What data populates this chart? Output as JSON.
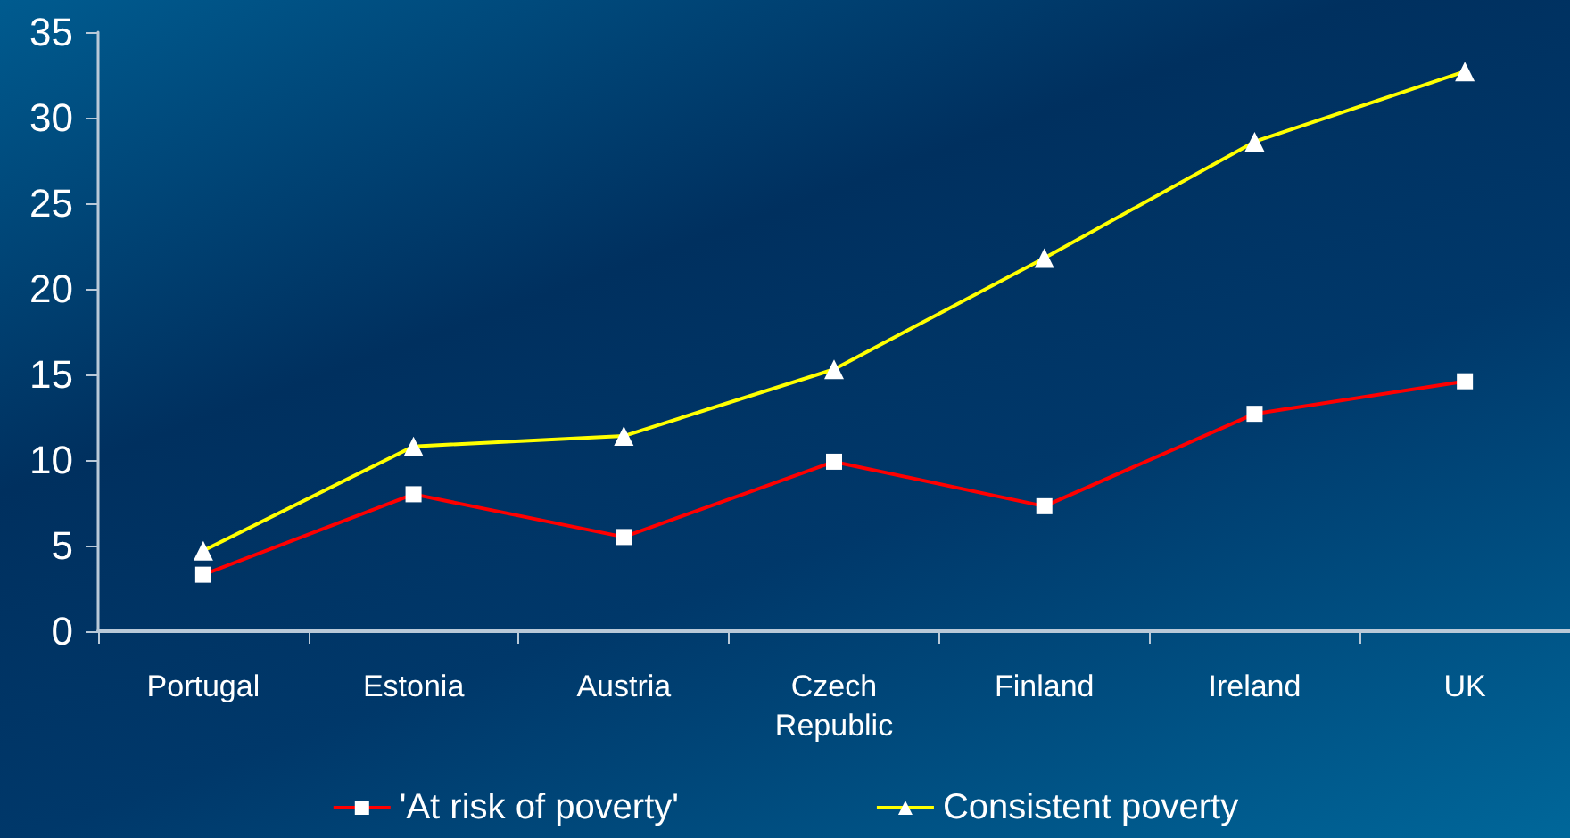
{
  "chart_data": {
    "type": "line",
    "categories": [
      "Portugal",
      "Estonia",
      "Austria",
      "Czech\nRepublic",
      "Finland",
      "Ireland",
      "UK"
    ],
    "series": [
      {
        "name": "'At risk of poverty'",
        "color": "#ff0000",
        "marker": "square",
        "values": [
          3.3,
          8.0,
          5.5,
          9.9,
          7.3,
          12.7,
          14.6
        ]
      },
      {
        "name": "Consistent poverty",
        "color": "#ffff00",
        "marker": "triangle",
        "values": [
          4.7,
          10.8,
          11.4,
          15.3,
          21.8,
          28.6,
          32.7
        ]
      }
    ],
    "ylim": [
      0,
      35
    ],
    "yticks": [
      0,
      5,
      10,
      15,
      20,
      25,
      30,
      35
    ],
    "grid": false,
    "legend": "bottom"
  }
}
